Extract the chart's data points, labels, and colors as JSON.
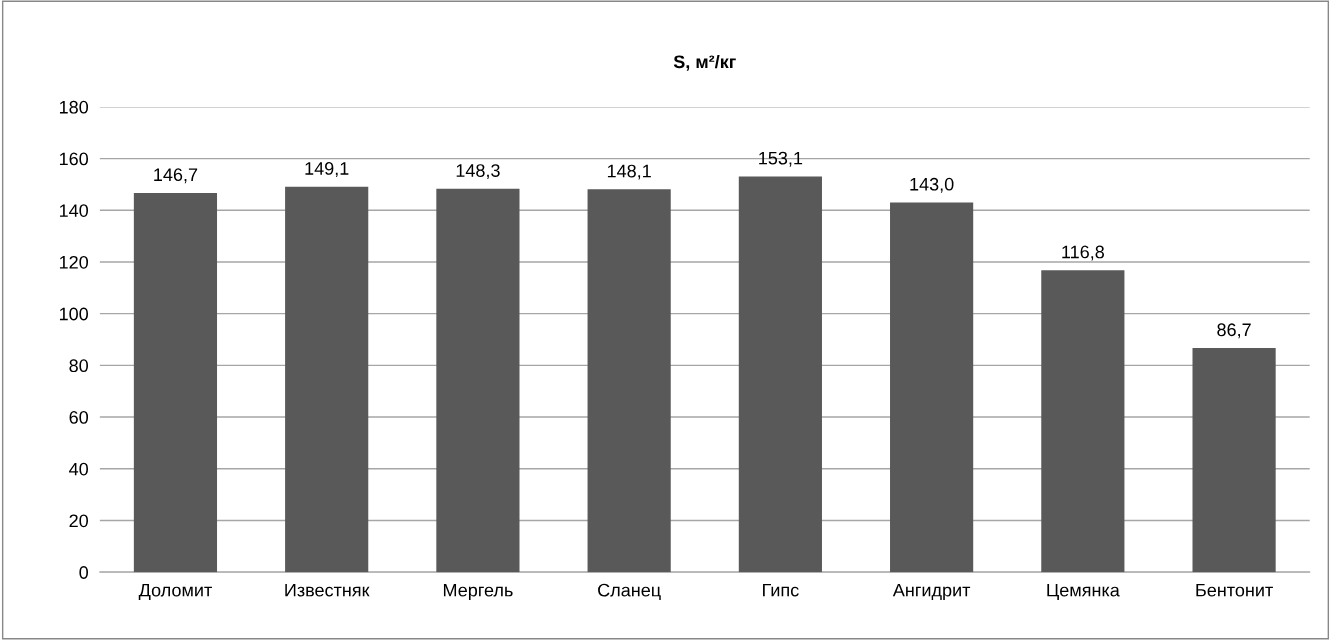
{
  "chart_data": {
    "type": "bar",
    "title": "S, м²/кг",
    "categories": [
      "Доломит",
      "Известняк",
      "Мергель",
      "Сланец",
      "Гипс",
      "Ангидрит",
      "Цемянка",
      "Бентонит"
    ],
    "values": [
      146.7,
      149.1,
      148.3,
      148.1,
      153.1,
      143.0,
      116.8,
      86.7
    ],
    "value_labels": [
      "146,7",
      "149,1",
      "148,3",
      "148,1",
      "153,1",
      "143,0",
      "116,8",
      "86,7"
    ],
    "color": "#595959",
    "ylim": [
      0,
      180
    ],
    "yticks": [
      0,
      20,
      40,
      60,
      80,
      100,
      120,
      140,
      160,
      180
    ],
    "grid": "y",
    "legend": false
  }
}
